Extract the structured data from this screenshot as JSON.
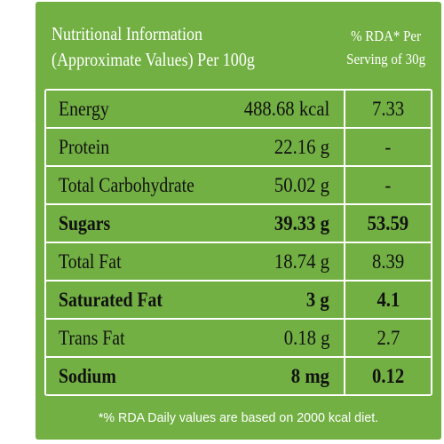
{
  "header": {
    "left_line1": "Nutritional Information",
    "left_line2": "(Approximate Values) Per 100g",
    "right_line1": "% RDA* Per",
    "right_line2": "Serving of 30g"
  },
  "rows": [
    {
      "name": "Energy",
      "value": "488.68 kcal",
      "rda": "7.33"
    },
    {
      "name": "Protein",
      "value": "22.16 g",
      "rda": "-"
    },
    {
      "name": "Total Carbohydrate",
      "value": "50.02 g",
      "rda": "-"
    },
    {
      "name": "Sugars",
      "value": "39.33 g",
      "rda": "53.59"
    },
    {
      "name": "Total Fat",
      "value": "18.74 g",
      "rda": "8.39"
    },
    {
      "name": "Saturated Fat",
      "value": "3 g",
      "rda": "4.1"
    },
    {
      "name": "Trans Fat",
      "value": "0.18 g",
      "rda": "2.7"
    },
    {
      "name": "Sodium",
      "value": "8 mg",
      "rda": "0.12"
    }
  ],
  "footnote": "*% RDA Daily values are based on 2000 kcal diet.",
  "colors": {
    "panel": "#72b043",
    "lines": "#ffffff",
    "text": "#111111"
  }
}
